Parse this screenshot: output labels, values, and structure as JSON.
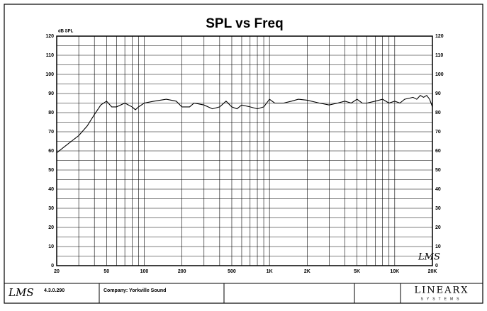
{
  "chart_data": {
    "type": "line",
    "title": "SPL vs Freq",
    "y_label": "dB SPL",
    "watermark": "LMS",
    "xscale": "log",
    "xlim": [
      20,
      20000
    ],
    "ylim": [
      0,
      120
    ],
    "xticks": [
      20,
      50,
      100,
      200,
      500,
      {
        "value": 1000,
        "label": "1K"
      },
      {
        "value": 2000,
        "label": "2K"
      },
      {
        "value": 5000,
        "label": "5K"
      },
      {
        "value": 10000,
        "label": "10K"
      },
      {
        "value": 20000,
        "label": "20K"
      }
    ],
    "xminor": [
      30,
      40,
      60,
      70,
      80,
      90,
      300,
      400,
      600,
      700,
      800,
      900,
      3000,
      4000,
      6000,
      7000,
      8000,
      9000
    ],
    "yticks": [
      0,
      10,
      20,
      30,
      40,
      50,
      60,
      70,
      80,
      90,
      100,
      110,
      120
    ],
    "yminor": [
      5,
      15,
      25,
      35,
      45,
      55,
      65,
      75,
      85,
      95,
      105,
      115
    ],
    "grid": true,
    "series": [
      {
        "color": "#000000",
        "x": [
          20,
          25,
          30,
          35,
          40,
          45,
          50,
          55,
          60,
          70,
          80,
          85,
          90,
          100,
          120,
          150,
          180,
          200,
          230,
          250,
          300,
          350,
          400,
          450,
          500,
          550,
          600,
          700,
          800,
          900,
          1000,
          1100,
          1300,
          1500,
          1700,
          2000,
          2500,
          3000,
          3500,
          4000,
          4500,
          5000,
          5500,
          6000,
          7000,
          8000,
          9000,
          10000,
          11000,
          12000,
          14000,
          15000,
          16000,
          17000,
          18000,
          19000,
          20000
        ],
        "values": [
          59,
          64,
          68,
          73,
          79,
          84,
          86,
          83,
          83,
          85,
          83,
          81.5,
          83,
          85,
          86,
          87,
          86,
          83,
          83,
          85,
          84,
          82,
          83,
          86,
          83,
          82,
          84,
          83,
          82,
          83,
          87,
          85,
          85,
          86,
          87,
          86.5,
          85,
          84,
          85,
          86,
          85,
          87,
          85,
          85,
          86,
          87,
          85,
          86,
          85,
          87,
          88,
          87,
          89,
          88,
          89,
          87,
          83
        ]
      }
    ]
  },
  "footer": {
    "logo": "LMS",
    "version": "4.3.0.290",
    "company": "Company: Yorkville Sound",
    "brand": "LINEARX",
    "brand_sub": "SYSTEMS"
  }
}
